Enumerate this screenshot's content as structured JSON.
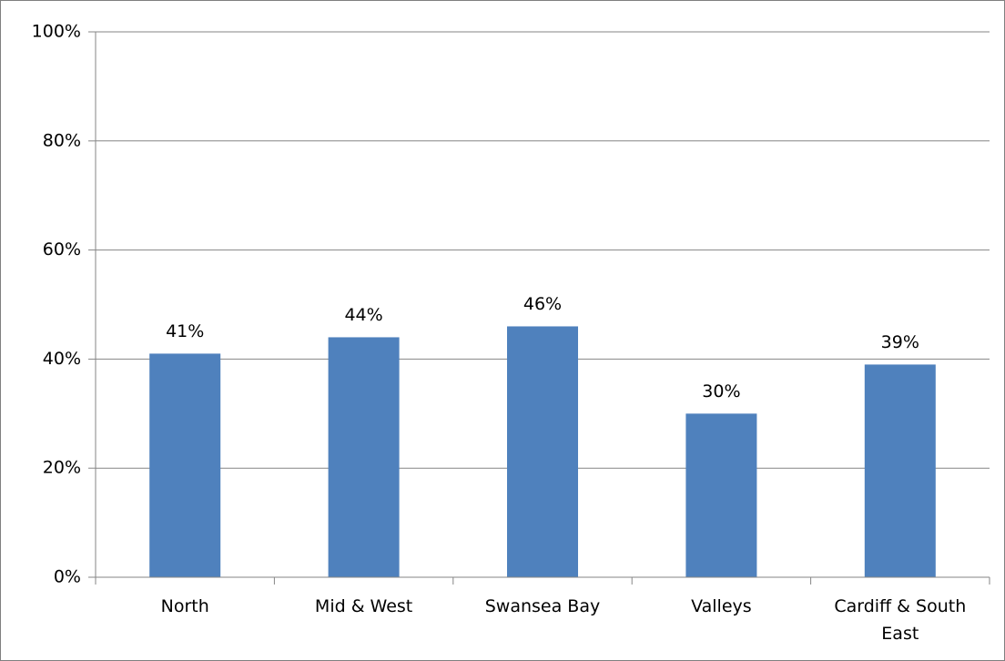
{
  "chart_data": {
    "type": "bar",
    "categories": [
      "North",
      "Mid & West",
      "Swansea Bay",
      "Valleys",
      "Cardiff & South East"
    ],
    "values": [
      41,
      44,
      46,
      30,
      39
    ],
    "value_labels": [
      "41%",
      "44%",
      "46%",
      "30%",
      "39%"
    ],
    "color": "#4f81bd",
    "ylim": [
      0,
      100
    ],
    "yticks": [
      {
        "value": 0,
        "label": "0%"
      },
      {
        "value": 20,
        "label": "20%"
      },
      {
        "value": 40,
        "label": "40%"
      },
      {
        "value": 60,
        "label": "60%"
      },
      {
        "value": 80,
        "label": "80%"
      },
      {
        "value": 100,
        "label": "100%"
      }
    ],
    "grid": true
  }
}
